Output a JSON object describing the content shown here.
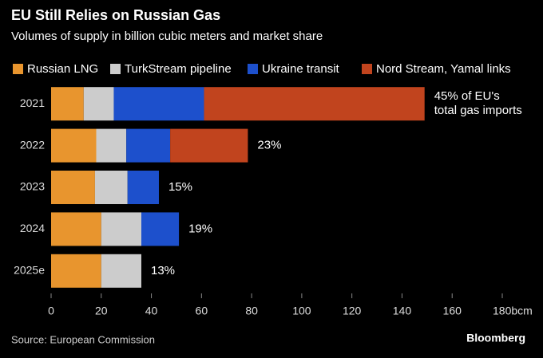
{
  "chart_data": {
    "type": "stacked_barh",
    "title": "EU Still Relies on Russian Gas",
    "subtitle": "Volumes of supply in billion cubic meters and market share",
    "source": "Source: European Commission",
    "brand": "Bloomberg",
    "categories": [
      "2021",
      "2022",
      "2023",
      "2024",
      "2025e"
    ],
    "series": [
      {
        "name": "Russian LNG",
        "color": "#e8952e",
        "values": [
          13,
          18,
          17.5,
          20,
          20
        ]
      },
      {
        "name": "TurkStream pipeline",
        "color": "#cccccc",
        "values": [
          12,
          12,
          13,
          16,
          16
        ]
      },
      {
        "name": "Ukraine transit",
        "color": "#1d50cc",
        "values": [
          36,
          17.5,
          12.5,
          15,
          null
        ]
      },
      {
        "name": "Nord Stream, Yamal links",
        "color": "#c1441e",
        "values": [
          88,
          31,
          null,
          null,
          null
        ]
      }
    ],
    "annotations": [
      [
        "45% of EU's",
        "total gas imports"
      ],
      [
        "23%"
      ],
      [
        "15%"
      ],
      [
        "19%"
      ],
      [
        "13%"
      ]
    ],
    "xlim": [
      0,
      180
    ],
    "xticks": [
      0,
      20,
      40,
      60,
      80,
      100,
      120,
      140,
      160,
      {
        "value": 180,
        "label": "180bcm"
      }
    ]
  }
}
